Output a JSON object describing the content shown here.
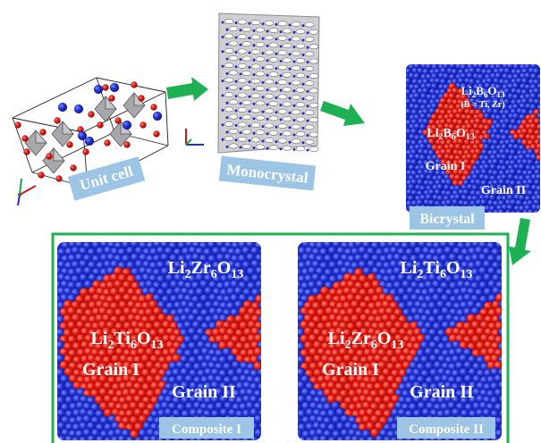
{
  "colors": {
    "blue_atom": "#1f2fd0",
    "blue_dark": "#0c1a9a",
    "red_atom": "#e81a12",
    "red_dark": "#a80d08",
    "arrow": "#1db154",
    "frame": "#1db154",
    "tag_bg": "#9cc4e4"
  },
  "unit_cell": {
    "label": "Unit cell"
  },
  "monocrystal": {
    "label": "Monocrystal"
  },
  "bicrystal": {
    "label": "Bicrystal",
    "matrix_formula": "Li2B6O13",
    "matrix_formula_parts": [
      [
        "Li",
        ""
      ],
      [
        "2",
        "sub"
      ],
      [
        "B",
        ""
      ],
      [
        "6",
        "sub"
      ],
      [
        "O",
        ""
      ],
      [
        "13",
        "sub"
      ]
    ],
    "note": "(B = Ti, Zr)",
    "grain_formula_parts": [
      [
        "Li",
        ""
      ],
      [
        "2",
        "sub"
      ],
      [
        "B",
        ""
      ],
      [
        "6",
        "sub"
      ],
      [
        "O",
        ""
      ],
      [
        "13",
        "sub"
      ]
    ],
    "grain1": "Grain I",
    "grain2": "Grain II"
  },
  "composite1": {
    "label": "Composite I",
    "matrix_formula_parts": [
      [
        "Li",
        ""
      ],
      [
        "2",
        "sub"
      ],
      [
        "Zr",
        ""
      ],
      [
        "6",
        "sub"
      ],
      [
        "O",
        ""
      ],
      [
        "13",
        "sub"
      ]
    ],
    "grain_formula_parts": [
      [
        "Li",
        ""
      ],
      [
        "2",
        "sub"
      ],
      [
        "Ti",
        ""
      ],
      [
        "6",
        "sub"
      ],
      [
        "O",
        ""
      ],
      [
        "13",
        "sub"
      ]
    ],
    "grain1": "Grain I",
    "grain2": "Grain II"
  },
  "composite2": {
    "label": "Composite II",
    "matrix_formula_parts": [
      [
        "Li",
        ""
      ],
      [
        "2",
        "sub"
      ],
      [
        "Ti",
        ""
      ],
      [
        "6",
        "sub"
      ],
      [
        "O",
        ""
      ],
      [
        "13",
        "sub"
      ]
    ],
    "grain_formula_parts": [
      [
        "Li",
        ""
      ],
      [
        "2",
        "sub"
      ],
      [
        "Zr",
        ""
      ],
      [
        "6",
        "sub"
      ],
      [
        "O",
        ""
      ],
      [
        "13",
        "sub"
      ]
    ],
    "grain1": "Grain I",
    "grain2": "Grain II"
  }
}
